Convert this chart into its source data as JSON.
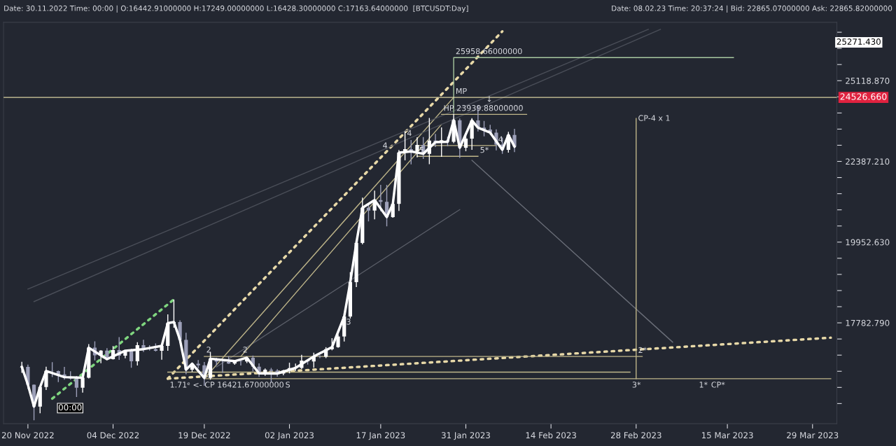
{
  "chart_data": {
    "type": "candlestick",
    "title": "Date: 30.11.2022 Time: 00:00 | O:16442.91000000 H:17249.00000000 L:16428.30000000 C:17163.64000000  [BTCUSDT:Day]",
    "subtitle": "Date: 08.02.23 Time: 20:37:24 | Bid: 22865.07000000 Ask: 22865.82000000",
    "x": [
      "2022-11-19",
      "2022-11-20",
      "2022-11-21",
      "2022-11-22",
      "2022-11-23",
      "2022-11-24",
      "2022-11-25",
      "2022-11-26",
      "2022-11-27",
      "2022-11-28",
      "2022-11-29",
      "2022-11-30",
      "2022-12-01",
      "2022-12-02",
      "2022-12-03",
      "2022-12-04",
      "2022-12-05",
      "2022-12-06",
      "2022-12-07",
      "2022-12-08",
      "2022-12-09",
      "2022-12-10",
      "2022-12-11",
      "2022-12-12",
      "2022-12-13",
      "2022-12-14",
      "2022-12-15",
      "2022-12-16",
      "2022-12-17",
      "2022-12-18",
      "2022-12-19",
      "2022-12-20",
      "2022-12-21",
      "2022-12-22",
      "2022-12-23",
      "2022-12-24",
      "2022-12-25",
      "2022-12-26",
      "2022-12-27",
      "2022-12-28",
      "2022-12-29",
      "2022-12-30",
      "2022-12-31",
      "2023-01-01",
      "2023-01-02",
      "2023-01-03",
      "2023-01-04",
      "2023-01-05",
      "2023-01-06",
      "2023-01-07",
      "2023-01-08",
      "2023-01-09",
      "2023-01-10",
      "2023-01-11",
      "2023-01-12",
      "2023-01-13",
      "2023-01-14",
      "2023-01-15",
      "2023-01-16",
      "2023-01-17",
      "2023-01-18",
      "2023-01-19",
      "2023-01-20",
      "2023-01-21",
      "2023-01-22",
      "2023-01-23",
      "2023-01-24",
      "2023-01-25",
      "2023-01-26",
      "2023-01-27",
      "2023-01-28",
      "2023-01-29",
      "2023-01-30",
      "2023-01-31",
      "2023-02-01",
      "2023-02-02",
      "2023-02-03",
      "2023-02-04",
      "2023-02-05",
      "2023-02-06",
      "2023-02-07",
      "2023-02-08"
    ],
    "ohlc": [
      [
        16692,
        16820,
        16560,
        16700
      ],
      [
        16700,
        16753,
        16180,
        16280
      ],
      [
        16280,
        16290,
        15476,
        15781
      ],
      [
        15781,
        16253,
        15630,
        16227
      ],
      [
        16227,
        16706,
        16160,
        16603
      ],
      [
        16603,
        16812,
        16458,
        16599
      ],
      [
        16599,
        16613,
        16340,
        16522
      ],
      [
        16522,
        16700,
        16400,
        16458
      ],
      [
        16458,
        16595,
        16400,
        16428
      ],
      [
        16428,
        16483,
        16000,
        16212
      ],
      [
        16212,
        16548,
        16100,
        16442
      ],
      [
        16442.91,
        17249,
        16428.3,
        17163.64
      ],
      [
        17163,
        17320,
        16855,
        16977
      ],
      [
        16977,
        17105,
        16787,
        17092
      ],
      [
        17092,
        17150,
        16878,
        16885
      ],
      [
        16885,
        17202,
        16878,
        17105
      ],
      [
        17105,
        17424,
        16867,
        16967
      ],
      [
        16967,
        17107,
        16906,
        17089
      ],
      [
        17089,
        17140,
        16678,
        16836
      ],
      [
        16836,
        17299,
        16733,
        17224
      ],
      [
        17224,
        17360,
        17058,
        17128
      ],
      [
        17128,
        17227,
        17092,
        17127
      ],
      [
        17127,
        17270,
        17071,
        17086
      ],
      [
        17086,
        17241,
        16871,
        17209
      ],
      [
        17209,
        18000,
        17087,
        17775
      ],
      [
        17775,
        18387,
        17660,
        17803
      ],
      [
        17803,
        17846,
        17275,
        17356
      ],
      [
        17356,
        17531,
        16527,
        16632
      ],
      [
        16632,
        16800,
        16585,
        16777
      ],
      [
        16777,
        16863,
        16663,
        16738
      ],
      [
        16738,
        16816,
        16256,
        16439
      ],
      [
        16439,
        17061,
        16399,
        16895
      ],
      [
        16895,
        16918,
        16735,
        16824
      ],
      [
        16824,
        16866,
        16560,
        16821
      ],
      [
        16821,
        16955,
        16773,
        16778
      ],
      [
        16778,
        16869,
        16750,
        16837
      ],
      [
        16837,
        16860,
        16732,
        16830
      ],
      [
        16830,
        16944,
        16791,
        16919
      ],
      [
        16919,
        16972,
        16592,
        16706
      ],
      [
        16706,
        16785,
        16465,
        16547
      ],
      [
        16547,
        16664,
        16488,
        16633
      ],
      [
        16633,
        16677,
        16333,
        16607
      ],
      [
        16607,
        16644,
        16470,
        16542
      ],
      [
        16542,
        16628,
        16499,
        16616
      ],
      [
        16616,
        16799,
        16548,
        16672
      ],
      [
        16672,
        16778,
        16605,
        16675
      ],
      [
        16675,
        16991,
        16652,
        16850
      ],
      [
        16850,
        16879,
        16753,
        16831
      ],
      [
        16831,
        17041,
        16679,
        16950
      ],
      [
        16950,
        16981,
        16908,
        16943
      ],
      [
        16943,
        17176,
        16911,
        17127
      ],
      [
        17127,
        17398,
        17100,
        17178
      ],
      [
        17178,
        17491,
        17160,
        17440
      ],
      [
        17440,
        18000,
        17315,
        17943
      ],
      [
        17943,
        19117,
        17892,
        18846
      ],
      [
        18846,
        19965,
        18714,
        19930
      ],
      [
        19930,
        21258,
        19889,
        20954
      ],
      [
        20954,
        21050,
        20551,
        20871
      ],
      [
        20871,
        21474,
        20611,
        21185
      ],
      [
        21185,
        21650,
        20850,
        21133
      ],
      [
        21133,
        21650,
        20407,
        20677
      ],
      [
        20677,
        21192,
        20659,
        21072
      ],
      [
        21072,
        22755,
        20862,
        22667
      ],
      [
        22667,
        23371,
        22422,
        22784
      ],
      [
        22784,
        23078,
        22293,
        22707
      ],
      [
        22707,
        23170,
        22514,
        22917
      ],
      [
        22917,
        23180,
        22467,
        22632
      ],
      [
        22632,
        23816,
        22300,
        23060
      ],
      [
        23060,
        23282,
        22850,
        23009
      ],
      [
        23009,
        23500,
        22534,
        23074
      ],
      [
        23074,
        23189,
        22878,
        23023
      ],
      [
        23023,
        23960,
        22977,
        23743
      ],
      [
        23743,
        23800,
        22500,
        22827
      ],
      [
        22827,
        23320,
        22715,
        23125
      ],
      [
        23125,
        23812,
        22760,
        23733
      ],
      [
        23733,
        24255,
        23363,
        23492
      ],
      [
        23492,
        23715,
        23204,
        23431
      ],
      [
        23431,
        23587,
        23253,
        23326
      ],
      [
        23326,
        23433,
        22745,
        22932
      ],
      [
        22932,
        23158,
        22628,
        22762
      ],
      [
        22762,
        23350,
        22667,
        23249
      ],
      [
        23249,
        23452,
        22683,
        22865
      ]
    ],
    "series": [
      {
        "type": "line",
        "color": "#ffffff",
        "line_style": "solid",
        "x": [
          "2022-11-19",
          "2022-11-20",
          "2022-11-21",
          "2022-11-22",
          "2022-11-23",
          "2022-11-26",
          "2022-11-29",
          "2022-11-30",
          "2022-12-03",
          "2022-12-06",
          "2022-12-09",
          "2022-12-12",
          "2022-12-13",
          "2022-12-14",
          "2022-12-15",
          "2022-12-16",
          "2022-12-17",
          "2022-12-19",
          "2022-12-20",
          "2022-12-24",
          "2022-12-26",
          "2022-12-28",
          "2022-12-31",
          "2023-01-03",
          "2023-01-06",
          "2023-01-09",
          "2023-01-11",
          "2023-01-12",
          "2023-01-13",
          "2023-01-14",
          "2023-01-16",
          "2023-01-18",
          "2023-01-19",
          "2023-01-20",
          "2023-01-22",
          "2023-01-24",
          "2023-01-26",
          "2023-01-28",
          "2023-01-29",
          "2023-01-30",
          "2023-02-01",
          "2023-02-02",
          "2023-02-04",
          "2023-02-06",
          "2023-02-07",
          "2023-02-08"
        ],
        "values": [
          16700,
          16280,
          15781,
          16227,
          16603,
          16458,
          16442,
          17163,
          16885,
          17089,
          17128,
          17209,
          17775,
          17803,
          17356,
          16632,
          16777,
          16439,
          16895,
          16837,
          16919,
          16547,
          16542,
          16675,
          16950,
          17178,
          17943,
          18846,
          19930,
          20954,
          21185,
          20677,
          21072,
          22667,
          22707,
          22632,
          23009,
          23023,
          23743,
          22827,
          23733,
          23492,
          23326,
          22762,
          23249,
          22865
        ]
      },
      {
        "type": "line",
        "color": "#e8d9a8",
        "line_style": "dotted",
        "x": [
          "2022-12-13",
          "2023-02-06"
        ],
        "values": [
          16421.67,
          26950
        ]
      },
      {
        "type": "line",
        "color": "#e8d9a8",
        "line_style": "dotted",
        "x": [
          "2022-12-13",
          "2023-04-01"
        ],
        "values": [
          16421.67,
          17410
        ]
      },
      {
        "type": "line",
        "color": "#7fd67f",
        "line_style": "dotted",
        "x": [
          "2022-11-24",
          "2022-12-14"
        ],
        "values": [
          15960,
          18387
        ]
      },
      {
        "type": "line",
        "color": "#5a5e68",
        "line_style": "solid",
        "x": [
          "2022-12-21",
          "2023-01-30"
        ],
        "values": [
          16700,
          20900
        ]
      },
      {
        "type": "line",
        "color": "#bfb68a",
        "line_style": "solid",
        "x": [
          "2022-12-19",
          "2023-01-29"
        ],
        "values": [
          16421.67,
          24526.66
        ]
      },
      {
        "type": "line",
        "color": "#bfb68a",
        "line_style": "solid",
        "x": [
          "2022-12-25",
          "2023-01-27"
        ],
        "values": [
          16950,
          23600
        ]
      },
      {
        "type": "line",
        "color": "#6a6e78",
        "line_style": "solid",
        "x": [
          "2023-02-01",
          "2023-03-06"
        ],
        "values": [
          22420,
          17300
        ]
      },
      {
        "type": "line",
        "color": "#4a4e58",
        "line_style": "solid",
        "x": [
          "2022-11-20",
          "2023-03-02"
        ],
        "values": [
          18660,
          27030
        ]
      },
      {
        "type": "line",
        "color": "#4a4e58",
        "line_style": "solid",
        "x": [
          "2022-11-21",
          "2023-03-04"
        ],
        "values": [
          18330,
          27030
        ]
      },
      {
        "type": "line",
        "color": "#a8c8a0",
        "line_style": "solid",
        "x": [
          "2023-01-29",
          "2023-01-29",
          "2023-03-16"
        ],
        "values": [
          24000,
          25958.66,
          25958.66
        ]
      },
      {
        "type": "line",
        "color": "#bfb68a",
        "line_style": "solid",
        "x": [
          "2023-01-27",
          "2023-02-10"
        ],
        "values": [
          23939.88,
          23939.88
        ]
      },
      {
        "type": "line",
        "color": "#bfb68a",
        "line_style": "solid",
        "x": [
          "2022-12-19",
          "2023-03-01"
        ],
        "values": [
          16950,
          16950
        ]
      },
      {
        "type": "line",
        "color": "#bfb68a",
        "line_style": "solid",
        "x": [
          "2022-12-13",
          "2023-02-27"
        ],
        "values": [
          16575,
          16575
        ]
      },
      {
        "type": "line",
        "color": "#bfb68a",
        "line_style": "solid",
        "x": [
          "2022-12-19",
          "2023-04-01"
        ],
        "values": [
          16421.67,
          16421.67
        ]
      },
      {
        "type": "line",
        "color": "#bfb68a",
        "line_style": "solid",
        "x": [
          "2023-02-28",
          "2023-02-28"
        ],
        "values": [
          23800,
          16421.67
        ]
      },
      {
        "type": "line",
        "color": "#bfb68a",
        "line_style": "solid",
        "x": [
          "2023-01-23",
          "2023-02-05"
        ],
        "values": [
          22900,
          22900
        ]
      },
      {
        "type": "line",
        "color": "#bfb68a",
        "line_style": "solid",
        "x": [
          "2023-01-23",
          "2023-02-02"
        ],
        "values": [
          22550,
          22550
        ]
      }
    ],
    "ref_lines": [
      {
        "axis": "y",
        "value": 24526.66,
        "label": "24526.660",
        "color": "#d8d0a0"
      }
    ],
    "annotations": [
      {
        "text": "25958.66000000",
        "x": "2023-01-29",
        "y": 25958.66
      },
      {
        "text": "MP",
        "x": "2023-01-29",
        "y": 24526.66
      },
      {
        "text": "HP 23939.88000000",
        "x": "2023-01-27",
        "y": 23939.88
      },
      {
        "text": "↓",
        "x": "2023-02-03",
        "y": 24250
      },
      {
        "text": "CP-4 x 1",
        "x": "2023-02-28",
        "y": 23600
      },
      {
        "text": "1.71ᵉ <- CP 16421.67000000",
        "x": "2022-12-13",
        "y": 16421.67
      },
      {
        "text": "2",
        "x": "2022-12-19",
        "y": 16960
      },
      {
        "text": "2",
        "x": "2022-12-25",
        "y": 16960
      },
      {
        "text": "S",
        "x": "2023-01-01",
        "y": 16421.67
      },
      {
        "text": "3",
        "x": "2023-01-11",
        "y": 17650
      },
      {
        "text": "4",
        "x": "2023-01-17",
        "y": 22700
      },
      {
        "text": "4",
        "x": "2023-01-21",
        "y": 23100
      },
      {
        "text": "5",
        "x": "2023-01-23",
        "y": 22550
      },
      {
        "text": "5*",
        "x": "2023-02-02",
        "y": 22550
      },
      {
        "text": "4",
        "x": "2023-02-05",
        "y": 22900
      },
      {
        "text": "2*",
        "x": "2023-02-28",
        "y": 16950
      },
      {
        "text": "3*",
        "x": "2023-02-27",
        "y": 16421.67
      },
      {
        "text": "1*",
        "x": "2023-03-10",
        "y": 16421.67
      },
      {
        "text": "CP*",
        "x": "2023-03-12",
        "y": 16421.67
      },
      "25271.430",
      "00:00"
    ],
    "log": "y",
    "grid": false,
    "legend": false,
    "xlim": [
      "2022-11-16",
      "2023-04-02"
    ],
    "xticks": [
      {
        "value": "2022-11-20",
        "label": "20 Nov 2022"
      },
      {
        "value": "2022-12-04",
        "label": "04 Dec 2022"
      },
      {
        "value": "2022-12-19",
        "label": "19 Dec 2022"
      },
      {
        "value": "2023-01-02",
        "label": "02 Jan 2023"
      },
      {
        "value": "2023-01-17",
        "label": "17 Jan 2023"
      },
      {
        "value": "2023-01-31",
        "label": "31 Jan 2023"
      },
      {
        "value": "2023-02-14",
        "label": "14 Feb 2023"
      },
      {
        "value": "2023-02-28",
        "label": "28 Feb 2023"
      },
      {
        "value": "2023-03-15",
        "label": "15 Mar 2023"
      },
      {
        "value": "2023-03-29",
        "label": "29 Mar 2023"
      }
    ],
    "ylim": [
      15400,
      27300
    ],
    "yticks": [
      {
        "value": 15848.93,
        "label": null
      },
      {
        "value": 16218.1,
        "label": null
      },
      {
        "value": 16595.87,
        "label": null
      },
      {
        "value": 16982.44,
        "label": null
      },
      {
        "value": 17378.01,
        "label": null
      },
      {
        "value": 17782.79,
        "label": "17782.790"
      },
      {
        "value": 18197.01,
        "label": null
      },
      {
        "value": 18620.87,
        "label": null
      },
      {
        "value": 19054.61,
        "label": null
      },
      {
        "value": 19498.45,
        "label": null
      },
      {
        "value": 19952.63,
        "label": "19952.630"
      },
      {
        "value": 20417.38,
        "label": null
      },
      {
        "value": 20892.96,
        "label": null
      },
      {
        "value": 21379.62,
        "label": null
      },
      {
        "value": 21877.62,
        "label": null
      },
      {
        "value": 22387.21,
        "label": "22387.210"
      },
      {
        "value": 22908.68,
        "label": null
      },
      {
        "value": 23442.29,
        "label": null
      },
      {
        "value": 23988.33,
        "label": null
      },
      {
        "value": 24547.09,
        "label": null
      },
      {
        "value": 25118.87,
        "label": "25118.870"
      },
      {
        "value": 25703.96,
        "label": null
      },
      {
        "value": 26302.68,
        "label": null
      },
      {
        "value": 26915.35,
        "label": null
      }
    ]
  }
}
